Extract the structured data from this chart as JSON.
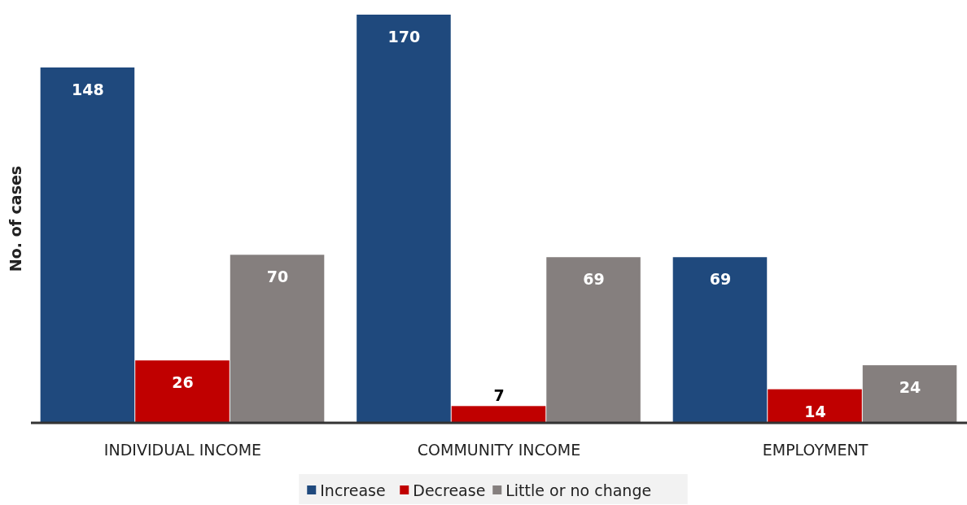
{
  "chart_data": {
    "type": "bar",
    "ylabel": "No. of cases",
    "categories": [
      "INDIVIDUAL INCOME",
      "COMMUNITY INCOME",
      "EMPLOYMENT"
    ],
    "series": [
      {
        "name": "Increase",
        "color": "#1f497d",
        "values": [
          148,
          170,
          69
        ]
      },
      {
        "name": "Decrease",
        "color": "#c00000",
        "values": [
          26,
          7,
          14
        ]
      },
      {
        "name": "Little or no change",
        "color": "#857f7e",
        "values": [
          70,
          69,
          24
        ]
      }
    ],
    "relative": false,
    "data_labels": true,
    "legend": "bottom",
    "grid": false
  }
}
